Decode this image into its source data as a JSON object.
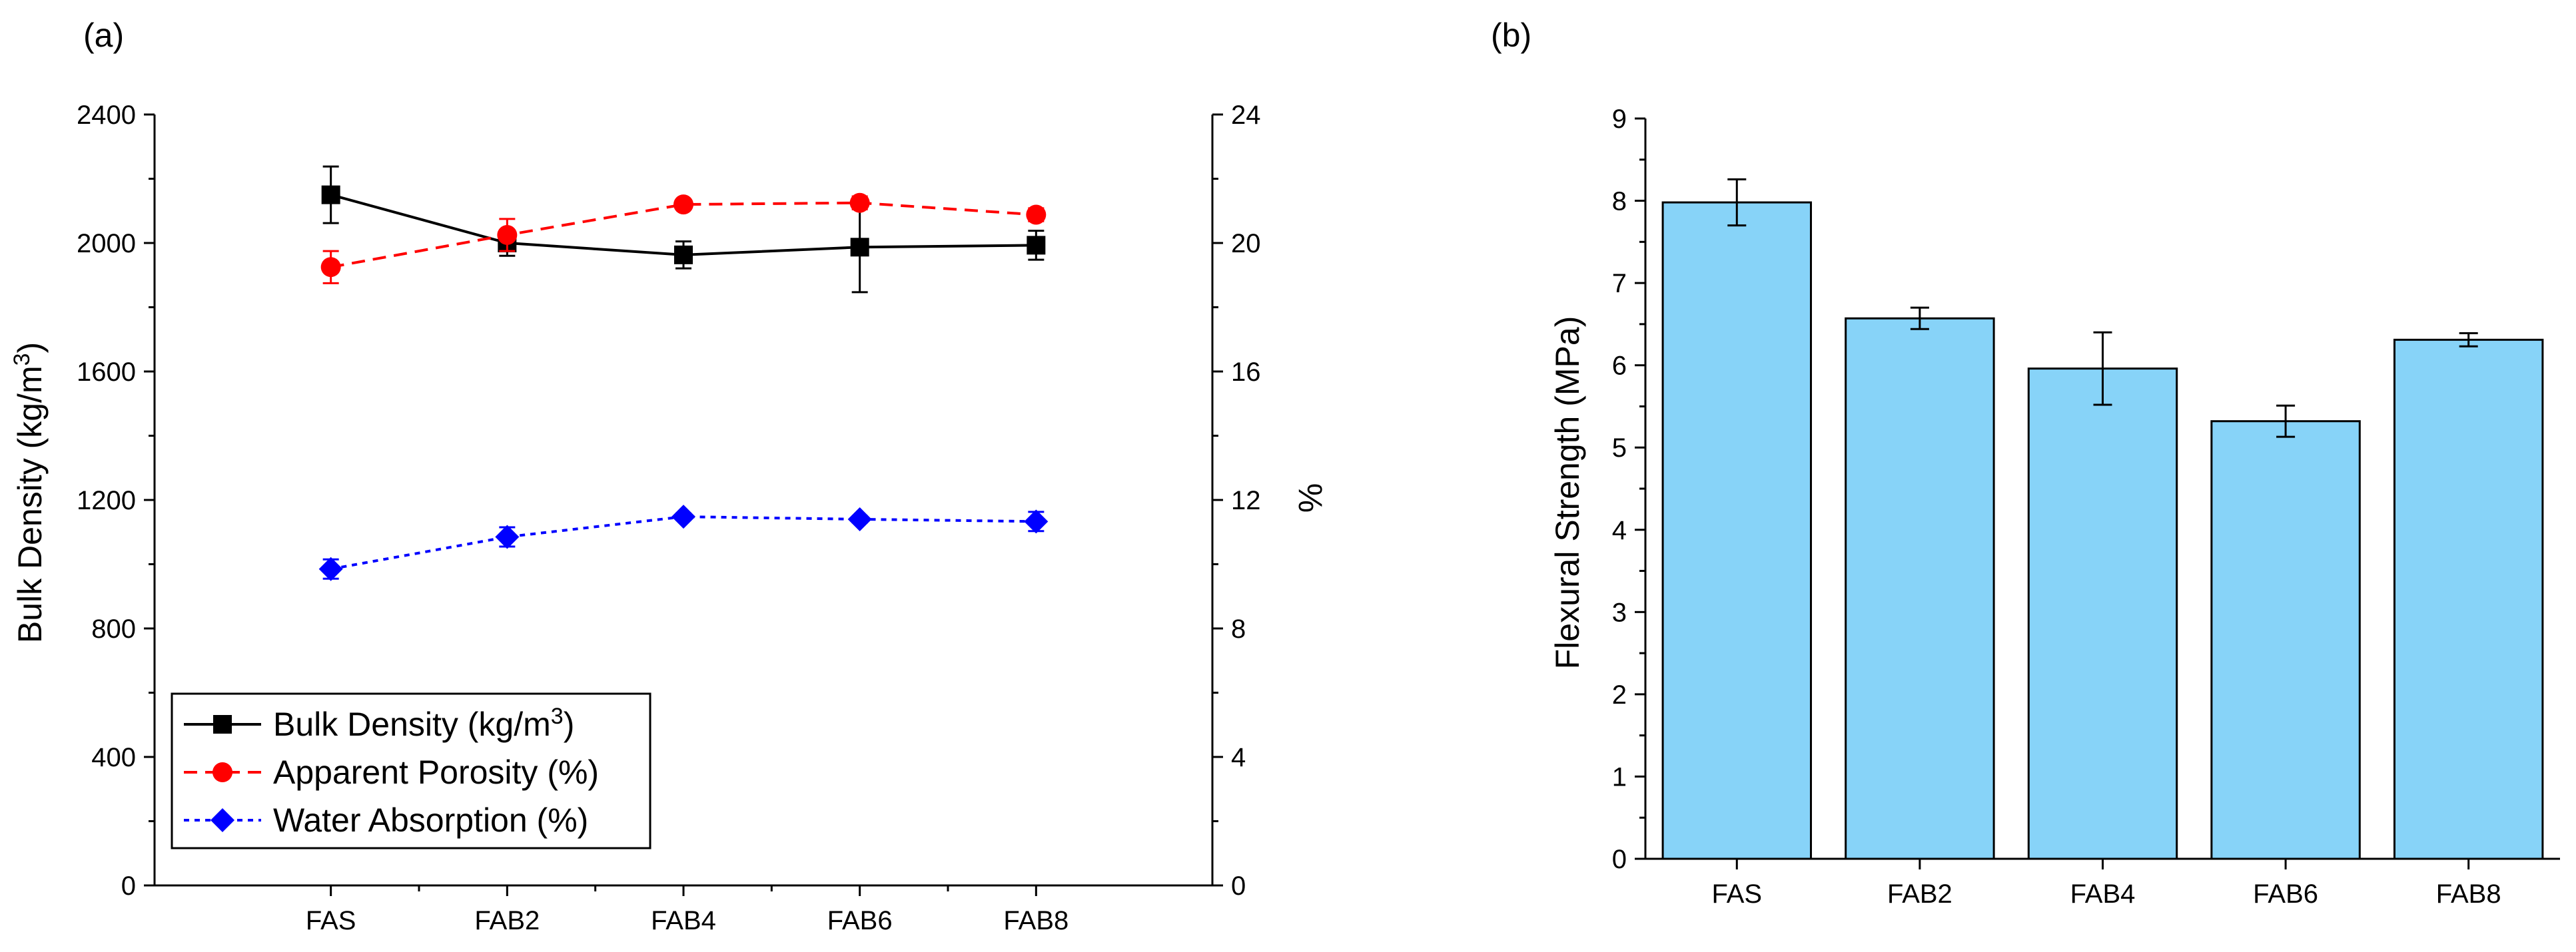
{
  "chart_data": [
    {
      "panel_label": "(a)",
      "type": "line",
      "categories": [
        "FAS",
        "FAB2",
        "FAB4",
        "FAB6",
        "FAB8"
      ],
      "ylabel_left": "Bulk Density (kg/m",
      "ylabel_left_sup": "3",
      "ylabel_left_end": ")",
      "ylabel_right": "%",
      "ylim_left": [
        0,
        2400
      ],
      "ylim_right": [
        0,
        24
      ],
      "yticks_left": [
        0,
        400,
        800,
        1200,
        1600,
        2000,
        2400
      ],
      "yticks_right": [
        0,
        4,
        8,
        12,
        16,
        20,
        24
      ],
      "legend_position": "bottom-left",
      "series": [
        {
          "name": "Bulk Density (kg/m",
          "name_sup": "3",
          "name_end": ")",
          "axis": "left",
          "color": "#000000",
          "marker": "square",
          "dash": "solid",
          "values": [
            2150,
            2000,
            1963,
            1987,
            1993
          ],
          "errors": [
            88,
            40,
            42,
            140,
            45
          ]
        },
        {
          "name": "Apparent Porosity (%)",
          "name_sup": "",
          "name_end": "",
          "axis": "right",
          "color": "#ff0000",
          "marker": "circle",
          "dash": "dashed",
          "values": [
            19.25,
            20.25,
            21.2,
            21.25,
            20.88
          ],
          "errors": [
            0.5,
            0.5,
            0.1,
            0.2,
            0.2
          ]
        },
        {
          "name": "Water Absorption (%)",
          "name_sup": "",
          "name_end": "",
          "axis": "right",
          "color": "#0000ff",
          "marker": "diamond",
          "dash": "dotted",
          "values": [
            9.85,
            10.85,
            11.48,
            11.4,
            11.33
          ],
          "errors": [
            0.3,
            0.3,
            0.1,
            0.1,
            0.3
          ]
        }
      ]
    },
    {
      "panel_label": "(b)",
      "type": "bar",
      "categories": [
        "FAS",
        "FAB2",
        "FAB4",
        "FAB6",
        "FAB8"
      ],
      "values": [
        7.98,
        6.57,
        5.96,
        5.32,
        6.31
      ],
      "errors": [
        0.28,
        0.13,
        0.44,
        0.19,
        0.08
      ],
      "ylabel": "Flexural Strength (MPa)",
      "ylim": [
        0,
        9
      ],
      "yticks": [
        0,
        1,
        2,
        3,
        4,
        5,
        6,
        7,
        8,
        9
      ],
      "bar_color": "#87d3f8",
      "edge_color": "#000000"
    }
  ]
}
